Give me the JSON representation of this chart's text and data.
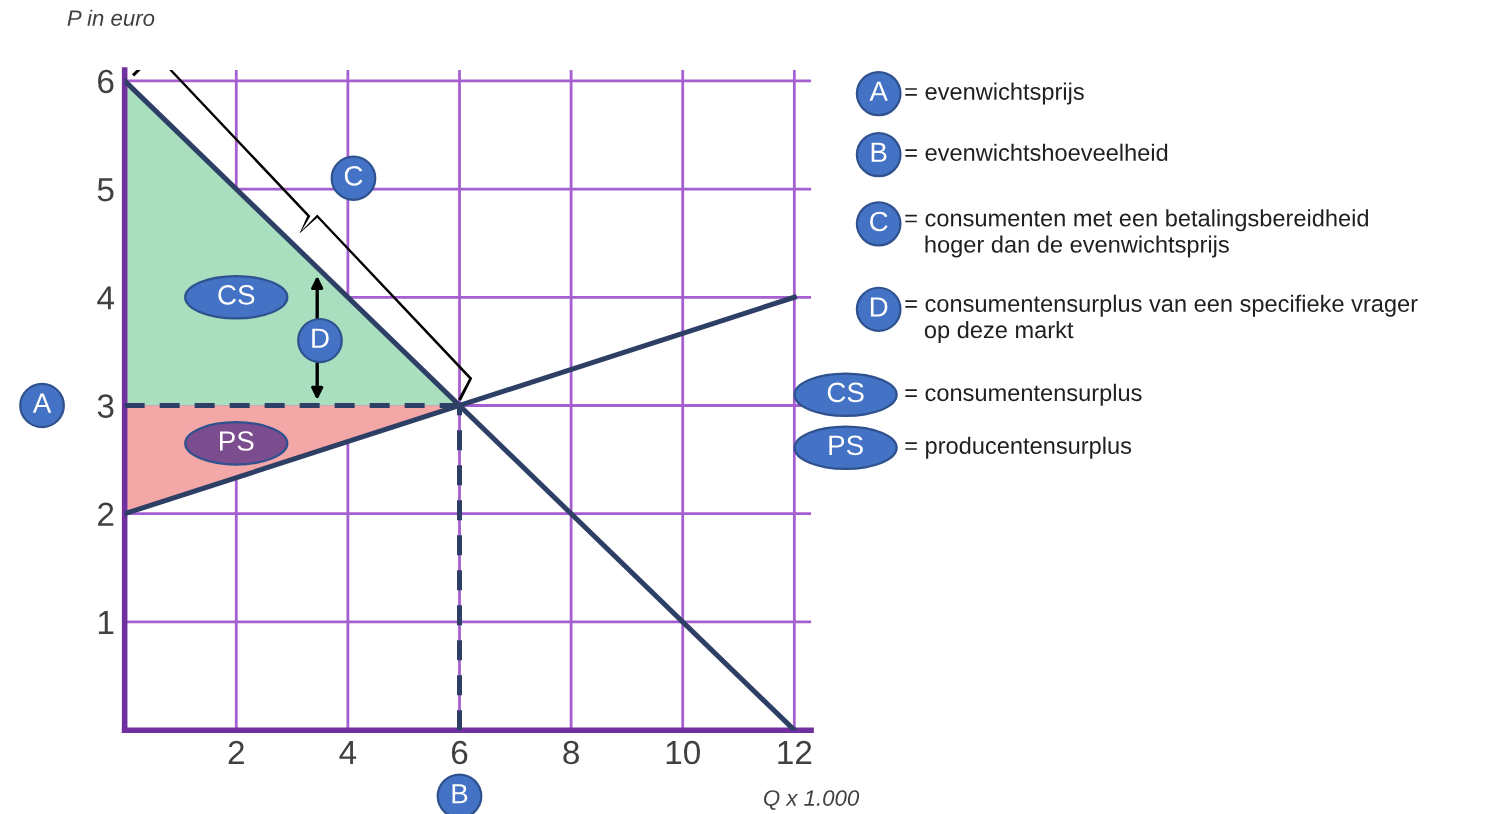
{
  "chart_data": {
    "type": "line",
    "xlabel": "Q x 1.000",
    "ylabel": "P in euro",
    "xlim": [
      0,
      12.3
    ],
    "ylim": [
      0,
      6.1
    ],
    "xticks": [
      2,
      4,
      6,
      8,
      10,
      12
    ],
    "yticks": [
      1,
      2,
      3,
      4,
      5,
      6
    ],
    "grid": true,
    "series": [
      {
        "type": "area",
        "x": [
          0,
          6,
          0
        ],
        "values": [
          6,
          3,
          3
        ],
        "color": "#a9dfbf"
      },
      {
        "type": "area",
        "x": [
          0,
          6,
          0
        ],
        "values": [
          3,
          3,
          2
        ],
        "color": "#f4a7a7"
      },
      {
        "x": [
          0,
          12
        ],
        "values": [
          6,
          0
        ],
        "color": "#2e3f66"
      },
      {
        "x": [
          0,
          12
        ],
        "values": [
          2,
          4
        ],
        "color": "#2e3f66"
      },
      {
        "x": [
          0,
          6
        ],
        "values": [
          3,
          3
        ],
        "color": "#2e3f66",
        "line_style": "dashed"
      },
      {
        "x": [
          6,
          6
        ],
        "values": [
          0,
          3
        ],
        "color": "#2e3f66",
        "line_style": "dashed"
      }
    ],
    "annotations": [
      "A",
      "B",
      "C",
      "D",
      "CS",
      "PS",
      "A",
      "= evenwichtsprijs",
      "B",
      "= evenwichtshoeveelheid",
      "C",
      "= consumenten met een betalingsbereidheid\n   hoger dan de evenwichtsprijs",
      "D",
      "= consumentensurplus van een specifieke vrager\n   op deze markt",
      "CS",
      "= consumentensurplus",
      "PS",
      "= producentensurplus"
    ]
  }
}
